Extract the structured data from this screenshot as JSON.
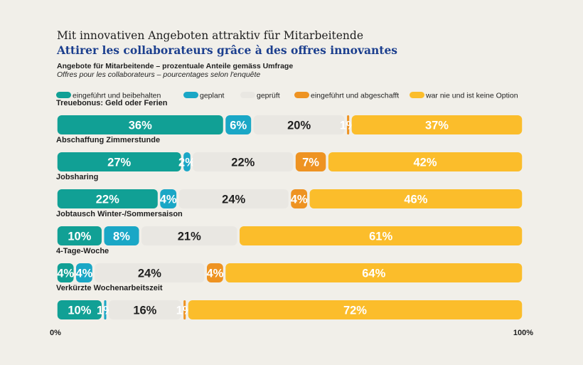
{
  "header": {
    "title": "Mit innovativen Angeboten attraktiv für Mitarbeitende",
    "subtitle": "Attirer les collaborateurs grâce à des offres innovantes",
    "note_de": "Angebote für Mitarbeitende – prozentuale Anteile gemäss Umfrage",
    "note_fr": "Offres pour les collaborateurs – pourcentages selon l'enquête"
  },
  "chart_data": {
    "type": "bar",
    "orientation": "horizontal",
    "stacked": true,
    "categories": [
      "Treuebonus: Geld oder Ferien",
      "Abschaffung Zimmerstunde",
      "Jobsharing",
      "Jobtausch Winter-/Sommersaison",
      "4-Tage-Woche",
      "Verkürzte Wochenarbeitszeit"
    ],
    "series": [
      {
        "name": "eingeführt und beibehalten",
        "color": "#11a095",
        "values": [
          36,
          27,
          22,
          10,
          4,
          10
        ]
      },
      {
        "name": "geplant",
        "color": "#1aa7c6",
        "values": [
          6,
          2,
          4,
          8,
          4,
          1
        ]
      },
      {
        "name": "geprüft",
        "color": "#e9e7e2",
        "values": [
          20,
          22,
          24,
          21,
          24,
          16
        ]
      },
      {
        "name": "eingeführt und  abgeschafft",
        "color": "#ee9322",
        "values": [
          1,
          7,
          4,
          0,
          4,
          1
        ]
      },
      {
        "name": "war nie und ist keine Option",
        "color": "#fbbd2b",
        "values": [
          37,
          42,
          46,
          61,
          64,
          72
        ]
      }
    ],
    "xlim": [
      0,
      100
    ],
    "x_tick_labels": [
      "0%",
      "100%"
    ],
    "value_suffix": "%",
    "legend_position": "top",
    "grid": false
  }
}
